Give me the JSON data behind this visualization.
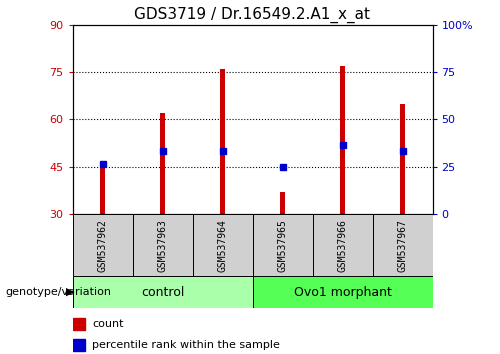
{
  "title": "GDS3719 / Dr.16549.2.A1_x_at",
  "samples": [
    "GSM537962",
    "GSM537963",
    "GSM537964",
    "GSM537965",
    "GSM537966",
    "GSM537967"
  ],
  "bar_heights": [
    46,
    62,
    76,
    37,
    77,
    65
  ],
  "bar_base": 30,
  "blue_dots": [
    46,
    50,
    50,
    45,
    52,
    50
  ],
  "bar_color": "#cc0000",
  "dot_color": "#0000cc",
  "ylim": [
    30,
    90
  ],
  "yticks_left": [
    30,
    45,
    60,
    75,
    90
  ],
  "ytick_labels_left": [
    "30",
    "45",
    "60",
    "75",
    "90"
  ],
  "right_ytick_positions": [
    30,
    45,
    60,
    75,
    90
  ],
  "ytick_labels_right": [
    "0",
    "25",
    "50",
    "75",
    "100%"
  ],
  "groups": [
    {
      "label": "control",
      "start": 0,
      "end": 3
    },
    {
      "label": "Ovo1 morphant",
      "start": 3,
      "end": 6
    }
  ],
  "group_colors": [
    "#aaffaa",
    "#55ff55"
  ],
  "genotype_label": "genotype/variation",
  "legend_items": [
    {
      "label": "count",
      "color": "#cc0000"
    },
    {
      "label": "percentile rank within the sample",
      "color": "#0000cc"
    }
  ],
  "grid_yticks": [
    45,
    60,
    75
  ],
  "title_fontsize": 11,
  "tick_fontsize": 8,
  "bar_width": 0.08,
  "left_axis_color": "#cc0000",
  "right_axis_color": "#0000cc",
  "sample_label_fontsize": 7,
  "group_label_fontsize": 9,
  "genotype_fontsize": 8
}
